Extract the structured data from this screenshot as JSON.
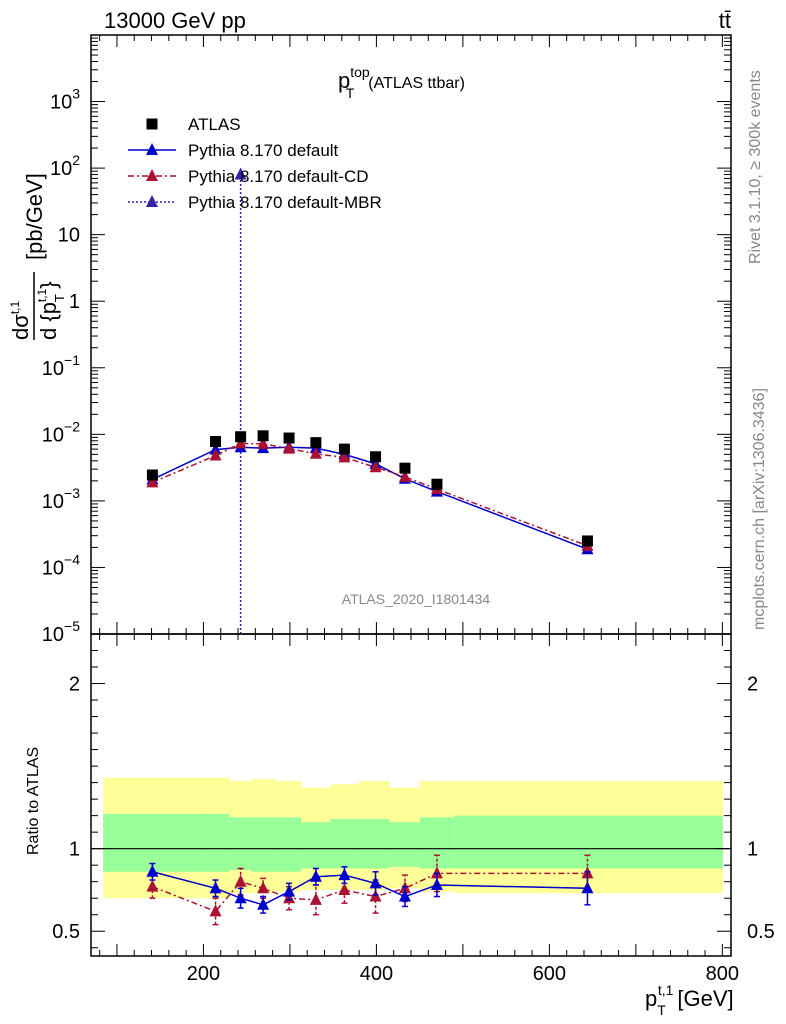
{
  "header": {
    "left": "13000 GeV pp",
    "right": "tt̄"
  },
  "side": {
    "rivet": "Rivet 3.1.10, ≥ 300k events",
    "mcplots": "mcplots.cern.ch [arXiv:1306.3436]"
  },
  "chart_data": [
    {
      "type": "scatter",
      "title": "ATLAS ttbar",
      "title_parts": {
        "main": "p",
        "sup": "top",
        "sub": "T",
        "tail": "(ATLAS ttbar)"
      },
      "ylabel": "dσ^{t,1} / d{p_T^{t,1}} [pb/GeV]",
      "ylabel_parts": {
        "num": "dσ",
        "num_sup": "t,1",
        "den": "d {p",
        "den_sub": "T",
        "den_sup": "t,1",
        "close": "}",
        "unit": "[pb/GeV]"
      },
      "yscale": "log",
      "ylim": [
        1e-05,
        10000.0
      ],
      "xlim": [
        70,
        810
      ],
      "ytick_labels": [
        {
          "value": 1e-05,
          "mant": "10",
          "exp": "−5"
        },
        {
          "value": 0.0001,
          "mant": "10",
          "exp": "−4"
        },
        {
          "value": 0.001,
          "mant": "10",
          "exp": "−3"
        },
        {
          "value": 0.01,
          "mant": "10",
          "exp": "−2"
        },
        {
          "value": 0.1,
          "mant": "10",
          "exp": "−1"
        },
        {
          "value": 1,
          "mant": "1",
          "exp": ""
        },
        {
          "value": 10,
          "mant": "10",
          "exp": ""
        },
        {
          "value": 100,
          "mant": "10",
          "exp": "2"
        },
        {
          "value": 1000,
          "mant": "10",
          "exp": "3"
        }
      ],
      "watermark": "ATLAS_2020_I1801434",
      "legend_position": "top-left",
      "series": [
        {
          "name": "ATLAS",
          "marker": "square",
          "color": "#000000",
          "x": [
            141,
            214,
            243,
            269,
            299,
            330,
            363,
            399,
            433,
            470,
            644
          ],
          "y": [
            0.00245,
            0.0078,
            0.0092,
            0.0095,
            0.0088,
            0.0075,
            0.006,
            0.0046,
            0.0031,
            0.00178,
            0.00025
          ]
        },
        {
          "name": "Pythia 8.170 default",
          "marker": "triangle",
          "line": "solid",
          "color": "#0000cc",
          "x": [
            141,
            214,
            243,
            269,
            299,
            330,
            363,
            399,
            433,
            470,
            644
          ],
          "y": [
            0.0021,
            0.0059,
            0.0064,
            0.0062,
            0.0064,
            0.0062,
            0.005,
            0.0036,
            0.00215,
            0.00138,
            0.000188
          ]
        },
        {
          "name": "Pythia 8.170 default-CD",
          "marker": "triangle",
          "line": "dashdot",
          "color": "#aa1133",
          "x": [
            141,
            214,
            243,
            269,
            299,
            330,
            363,
            399,
            433,
            470,
            644
          ],
          "y": [
            0.0019,
            0.0048,
            0.0073,
            0.0072,
            0.0061,
            0.0051,
            0.0045,
            0.0032,
            0.0023,
            0.0015,
            0.000212
          ]
        },
        {
          "name": "Pythia 8.170 default-MBR",
          "marker": "triangle",
          "line": "dotted",
          "color": "#3322aa",
          "x": [
            243,
            243
          ],
          "y": [
            1e-05,
            80
          ]
        }
      ]
    },
    {
      "type": "scatter",
      "title": "Ratio to ATLAS",
      "ylabel": "Ratio to ATLAS",
      "xlabel": "p_T^{t,1} [GeV]",
      "xlabel_parts": {
        "main": "p",
        "sub": "T",
        "sup": "t,1",
        "unit": "[GeV]"
      },
      "ylim": [
        0.35,
        2.3
      ],
      "yticks": [
        0.5,
        1,
        2
      ],
      "ytick_labels": [
        "0.5",
        "1",
        "2"
      ],
      "xticks": [
        200,
        400,
        600,
        800
      ],
      "xtick_labels": [
        "200",
        "400",
        "600",
        "800"
      ],
      "bands": {
        "edges": [
          84,
          198,
          230,
          255,
          284,
          313,
          347,
          380,
          415,
          450,
          490,
          800
        ],
        "green_lo": [
          0.86,
          0.86,
          0.87,
          0.86,
          0.86,
          0.88,
          0.88,
          0.88,
          0.89,
          0.88,
          0.88
        ],
        "green_hi": [
          1.21,
          1.21,
          1.19,
          1.19,
          1.19,
          1.16,
          1.18,
          1.18,
          1.16,
          1.19,
          1.2
        ],
        "yellow_lo": [
          0.7,
          0.7,
          0.73,
          0.73,
          0.74,
          0.75,
          0.75,
          0.75,
          0.76,
          0.74,
          0.73
        ],
        "yellow_hi": [
          1.43,
          1.43,
          1.41,
          1.42,
          1.41,
          1.37,
          1.39,
          1.41,
          1.37,
          1.41,
          1.41
        ]
      },
      "series": [
        {
          "name": "Pythia 8.170 default",
          "color": "#0000cc",
          "line": "solid",
          "x": [
            141,
            214,
            243,
            269,
            299,
            330,
            363,
            399,
            433,
            470,
            644
          ],
          "y": [
            0.86,
            0.76,
            0.7,
            0.66,
            0.74,
            0.83,
            0.84,
            0.79,
            0.71,
            0.78,
            0.76
          ],
          "err": [
            0.05,
            0.05,
            0.06,
            0.05,
            0.05,
            0.05,
            0.05,
            0.07,
            0.06,
            0.07,
            0.1
          ]
        },
        {
          "name": "Pythia 8.170 default-CD",
          "color": "#aa1133",
          "line": "dashdot",
          "x": [
            141,
            214,
            243,
            269,
            299,
            330,
            363,
            399,
            433,
            470,
            644
          ],
          "y": [
            0.77,
            0.62,
            0.8,
            0.76,
            0.7,
            0.69,
            0.75,
            0.71,
            0.76,
            0.85,
            0.85
          ],
          "err": [
            0.07,
            0.08,
            0.08,
            0.06,
            0.07,
            0.09,
            0.08,
            0.1,
            0.08,
            0.11,
            0.11
          ]
        }
      ]
    }
  ]
}
